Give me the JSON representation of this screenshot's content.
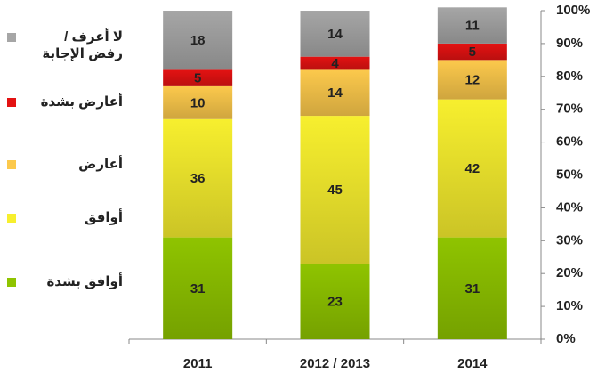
{
  "chart_data": {
    "type": "stacked_bar",
    "categories": [
      "2011",
      "2012 / 2013",
      "2014"
    ],
    "series": [
      {
        "name": "أوافق بشدة",
        "color": "#8fc400",
        "values": [
          31,
          23,
          31
        ]
      },
      {
        "name": "أوافق",
        "color": "#f7ef2e",
        "values": [
          36,
          45,
          42
        ]
      },
      {
        "name": "أعارض",
        "color": "#fcc94c",
        "values": [
          10,
          14,
          12
        ]
      },
      {
        "name": "أعارض بشدة",
        "color": "#e31212",
        "values": [
          5,
          4,
          5
        ]
      },
      {
        "name": "لا أعرف / رفض الإجابة",
        "color": "#a6a6a6",
        "values": [
          18,
          14,
          11
        ]
      }
    ],
    "ylim": [
      0,
      100
    ],
    "yticks": [
      {
        "value": 0,
        "label": "0%"
      },
      {
        "value": 10,
        "label": "10%"
      },
      {
        "value": 20,
        "label": "20%"
      },
      {
        "value": 30,
        "label": "30%"
      },
      {
        "value": 40,
        "label": "40%"
      },
      {
        "value": 50,
        "label": "50%"
      },
      {
        "value": 60,
        "label": "60%"
      },
      {
        "value": 70,
        "label": "70%"
      },
      {
        "value": 80,
        "label": "80%"
      },
      {
        "value": 90,
        "label": "90%"
      },
      {
        "value": 100,
        "label": "100%"
      }
    ],
    "legend": "left"
  }
}
